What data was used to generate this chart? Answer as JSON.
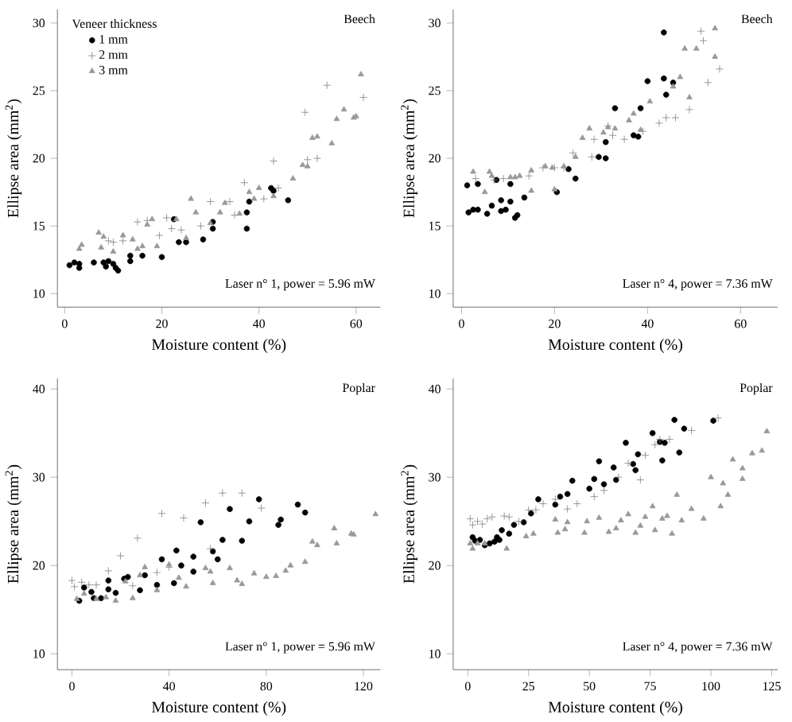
{
  "chart_data": [
    {
      "type": "scatter",
      "xlabel": "Moisture content (%)",
      "ylabel": "Ellipse area (mm$^{2}$)",
      "legend_title": "Veneer thickness",
      "legend": "top left",
      "annotations": [
        "Beech",
        "Laser n° 1, power = 5.96 mW"
      ],
      "xlim": [
        -1.5,
        65
      ],
      "ylim": [
        9,
        31
      ],
      "xticks": [
        0,
        20,
        40,
        60
      ],
      "yticks": [
        10,
        15,
        20,
        25,
        30
      ],
      "series": [
        {
          "name": "1 mm",
          "color": "#000000",
          "marker": "circle",
          "x": [
            1,
            2,
            3,
            3,
            6,
            8,
            8.5,
            9,
            10,
            10.5,
            11,
            13.5,
            13.5,
            16,
            20,
            22.5,
            23.5,
            25,
            28.5,
            30.5,
            30.5,
            37.5,
            37.5,
            38,
            42.5,
            43,
            46
          ],
          "values": [
            12.1,
            12.3,
            12.2,
            11.9,
            12.3,
            12.3,
            12.0,
            12.4,
            12.2,
            11.9,
            11.7,
            12.8,
            12.4,
            12.8,
            12.7,
            15.5,
            13.8,
            13.8,
            14.0,
            15.3,
            14.8,
            14.8,
            16.0,
            16.8,
            17.8,
            17.6,
            16.9
          ]
        },
        {
          "name": "2 mm",
          "color": "#808080",
          "marker": "cross",
          "x": [
            9,
            10,
            12,
            15,
            17,
            19.5,
            21,
            22,
            24,
            28,
            30,
            34,
            35,
            37,
            41,
            43,
            44,
            49.5,
            50,
            52,
            54,
            61.5
          ],
          "values": [
            13.9,
            13.8,
            13.9,
            15.3,
            15.4,
            14.3,
            15.6,
            14.8,
            14.7,
            15.0,
            16.8,
            16.8,
            15.8,
            18.2,
            17.0,
            19.8,
            17.8,
            23.4,
            19.9,
            20.0,
            25.4,
            24.5
          ]
        },
        {
          "name": "3 mm",
          "color": "#999999",
          "marker": "triangle",
          "x": [
            3,
            3.5,
            7,
            7.5,
            8,
            10,
            12,
            14,
            15,
            16,
            17,
            18,
            19,
            23,
            25,
            26,
            27,
            30,
            32,
            33,
            36,
            38,
            39,
            40,
            43,
            47,
            49,
            50,
            51,
            52,
            55,
            56,
            57.5,
            59.5,
            60,
            61
          ],
          "values": [
            13.3,
            13.6,
            14.5,
            13.4,
            14.2,
            13.1,
            14.3,
            14.0,
            13.3,
            13.5,
            15.1,
            15.5,
            13.5,
            15.5,
            14.1,
            17.0,
            16.0,
            15.2,
            16.0,
            16.7,
            15.9,
            17.5,
            17.0,
            17.8,
            17.2,
            18.5,
            19.5,
            19.4,
            21.5,
            21.6,
            21.1,
            22.9,
            23.6,
            23.0,
            23.1,
            26.2
          ]
        }
      ]
    },
    {
      "type": "scatter",
      "xlabel": "Moisture content (%)",
      "ylabel": "Ellipse area (mm$^{2}$)",
      "annotations": [
        "Beech",
        "Laser n° 4, power = 7.36 mW"
      ],
      "xlim": [
        -1.8,
        68
      ],
      "ylim": [
        9,
        31
      ],
      "xticks": [
        0,
        20,
        40,
        60
      ],
      "yticks": [
        10,
        15,
        20,
        25,
        30
      ],
      "series": [
        {
          "color": "#000000",
          "marker": "circle",
          "x": [
            1.2,
            1.5,
            2.5,
            3.5,
            3.5,
            5.5,
            6.5,
            7.5,
            8.5,
            8.5,
            9.5,
            10.5,
            10.5,
            11.5,
            12,
            13.5,
            20.5,
            23,
            24.5,
            29.5,
            31,
            31,
            33,
            37,
            38,
            38.5,
            40,
            43.5,
            43.5,
            44,
            45.5
          ],
          "values": [
            18.0,
            16.0,
            16.2,
            18.1,
            16.2,
            15.9,
            16.5,
            18.4,
            16.9,
            16.1,
            16.2,
            16.8,
            18.1,
            15.6,
            15.8,
            17.1,
            17.5,
            19.2,
            18.5,
            20.1,
            21.2,
            20.0,
            23.7,
            21.7,
            21.6,
            23.7,
            25.7,
            29.3,
            25.9,
            24.7,
            25.6
          ]
        },
        {
          "color": "#808080",
          "marker": "cross",
          "x": [
            3,
            7,
            9,
            14.5,
            17.5,
            20,
            22,
            24,
            28,
            28.5,
            31.5,
            32.5,
            35,
            39,
            42.5,
            44,
            46,
            49,
            51.5,
            52,
            53,
            55.5
          ],
          "values": [
            18.5,
            18.4,
            18.5,
            18.7,
            19.3,
            19.3,
            19.3,
            20.4,
            20.1,
            21.4,
            22.4,
            21.7,
            21.4,
            22.0,
            22.6,
            23.0,
            23.0,
            23.6,
            29.4,
            28.7,
            25.6,
            26.6
          ]
        },
        {
          "color": "#999999",
          "marker": "triangle",
          "x": [
            2.5,
            5,
            6,
            6.5,
            10.5,
            11.5,
            12.5,
            15,
            15,
            18,
            19.5,
            20,
            22,
            24.5,
            26,
            27.5,
            30.5,
            31.5,
            33,
            36,
            37,
            38.5,
            40.5,
            45.5,
            47,
            48,
            49,
            50.5,
            54.5,
            54.5
          ],
          "values": [
            19.0,
            17.5,
            19.0,
            18.7,
            18.6,
            18.6,
            18.7,
            19.1,
            17.6,
            19.4,
            19.3,
            17.7,
            19.4,
            20.1,
            21.5,
            22.2,
            21.9,
            22.3,
            22.2,
            22.8,
            23.3,
            22.1,
            24.2,
            25.3,
            26.0,
            28.1,
            24.5,
            28.1,
            29.6,
            27.5
          ]
        }
      ]
    },
    {
      "type": "scatter",
      "xlabel": "Moisture content (%)",
      "ylabel": "Ellipse area (mm$^{2}$)",
      "annotations": [
        "Poplar",
        "Laser n° 1, power = 5.96 mW"
      ],
      "xlim": [
        -6,
        127
      ],
      "ylim": [
        8.2,
        41.2
      ],
      "xticks": [
        0,
        40,
        80,
        120
      ],
      "yticks": [
        10,
        20,
        30,
        40
      ],
      "series": [
        {
          "color": "#000000",
          "marker": "circle",
          "x": [
            3,
            5,
            8,
            9,
            12,
            15,
            15,
            18,
            21.5,
            23,
            28,
            30,
            35,
            37,
            42,
            43,
            45,
            50,
            50,
            53,
            58,
            60,
            62,
            65,
            70,
            73,
            77,
            85,
            86,
            93,
            96
          ],
          "values": [
            16.0,
            17.5,
            17.0,
            16.3,
            16.3,
            18.3,
            17.3,
            16.9,
            18.5,
            18.7,
            17.2,
            18.9,
            17.8,
            20.7,
            18.0,
            21.7,
            20.0,
            21.0,
            19.3,
            24.9,
            21.6,
            20.7,
            22.9,
            26.4,
            22.8,
            25.0,
            27.5,
            24.6,
            25.2,
            26.9,
            26.0
          ]
        },
        {
          "color": "#808080",
          "marker": "cross",
          "x": [
            0,
            1,
            4,
            7,
            10,
            15,
            20,
            25,
            27,
            35,
            37,
            40,
            46,
            55,
            57,
            62,
            70,
            78
          ],
          "values": [
            18.3,
            17.6,
            18.1,
            17.8,
            17.8,
            19.4,
            21.1,
            17.7,
            23.1,
            19.2,
            25.9,
            19.8,
            25.4,
            27.1,
            21.9,
            28.2,
            28.2,
            26.5
          ]
        },
        {
          "color": "#999999",
          "marker": "triangle",
          "x": [
            2,
            5,
            10,
            14,
            18,
            22,
            25,
            28,
            30,
            35,
            40,
            44,
            47,
            55,
            57,
            58,
            65,
            68,
            70,
            75,
            80,
            84,
            88,
            90,
            96,
            99,
            101,
            108,
            109,
            115,
            116,
            125
          ],
          "values": [
            16.2,
            16.8,
            16.2,
            16.4,
            16.0,
            18.2,
            16.3,
            18.9,
            19.8,
            17.2,
            20.1,
            18.6,
            17.6,
            19.7,
            19.3,
            18.0,
            19.7,
            18.3,
            17.9,
            19.1,
            18.7,
            18.8,
            19.4,
            20.0,
            20.4,
            22.7,
            22.3,
            24.2,
            22.5,
            23.6,
            23.5,
            25.8
          ]
        }
      ]
    },
    {
      "type": "scatter",
      "xlabel": "Moisture content (%)",
      "ylabel": "Ellipse area (mm$^{2}$)",
      "annotations": [
        "Poplar",
        "Laser n° 4, power = 7.36 mW"
      ],
      "xlim": [
        -6,
        127.5
      ],
      "ylim": [
        8.2,
        41.2
      ],
      "xticks": [
        0,
        25,
        50,
        75,
        100,
        125
      ],
      "yticks": [
        10,
        20,
        30,
        40
      ],
      "series": [
        {
          "color": "#000000",
          "marker": "circle",
          "x": [
            2,
            3,
            5,
            7,
            9,
            11,
            12,
            13,
            14,
            17,
            19,
            23,
            26,
            29,
            36,
            38,
            41,
            43,
            50,
            52,
            54,
            56,
            60,
            61,
            65,
            68,
            69,
            70,
            76,
            79,
            80,
            81,
            85,
            87,
            89,
            101
          ],
          "values": [
            23.2,
            22.8,
            22.9,
            22.3,
            22.5,
            22.7,
            23.2,
            22.9,
            24.0,
            23.6,
            24.6,
            24.9,
            25.9,
            27.5,
            26.9,
            27.8,
            28.1,
            29.6,
            28.7,
            29.8,
            31.8,
            29.2,
            31.1,
            29.7,
            33.9,
            31.5,
            30.8,
            32.6,
            35.0,
            34.0,
            31.9,
            33.9,
            36.5,
            32.8,
            35.5,
            36.4
          ]
        },
        {
          "color": "#808080",
          "marker": "cross",
          "x": [
            1,
            2,
            4,
            6,
            8,
            10,
            15,
            17,
            21,
            25,
            28,
            31,
            36,
            41,
            45,
            52,
            56,
            62,
            66,
            71,
            73,
            77,
            79,
            83,
            92,
            103
          ],
          "values": [
            25.3,
            24.6,
            25.0,
            24.7,
            25.3,
            25.5,
            25.6,
            25.5,
            25.0,
            26.3,
            26.3,
            27.0,
            27.5,
            26.4,
            27.0,
            27.8,
            28.5,
            30.0,
            31.6,
            29.7,
            32.5,
            33.7,
            34.3,
            34.3,
            35.3,
            36.7
          ]
        },
        {
          "color": "#999999",
          "marker": "triangle",
          "x": [
            1,
            2,
            4,
            7,
            16,
            24,
            27,
            36,
            37,
            40,
            41,
            48,
            49,
            54,
            58,
            61,
            63,
            66,
            69,
            71,
            73,
            76,
            77,
            80,
            82,
            84,
            86,
            88,
            92,
            97,
            100,
            104,
            105,
            107,
            109,
            113,
            113,
            117,
            121,
            123
          ],
          "values": [
            22.5,
            21.9,
            22.5,
            22.5,
            21.9,
            23.3,
            23.6,
            25.2,
            23.7,
            24.1,
            24.9,
            23.7,
            25.0,
            25.4,
            23.8,
            24.2,
            25.1,
            25.8,
            23.7,
            24.5,
            25.5,
            26.7,
            24.0,
            25.3,
            25.6,
            23.6,
            28.0,
            25.1,
            26.4,
            25.3,
            30.0,
            26.7,
            29.3,
            28.0,
            32.0,
            29.8,
            31.0,
            32.7,
            33.0,
            35.2
          ]
        }
      ]
    }
  ]
}
